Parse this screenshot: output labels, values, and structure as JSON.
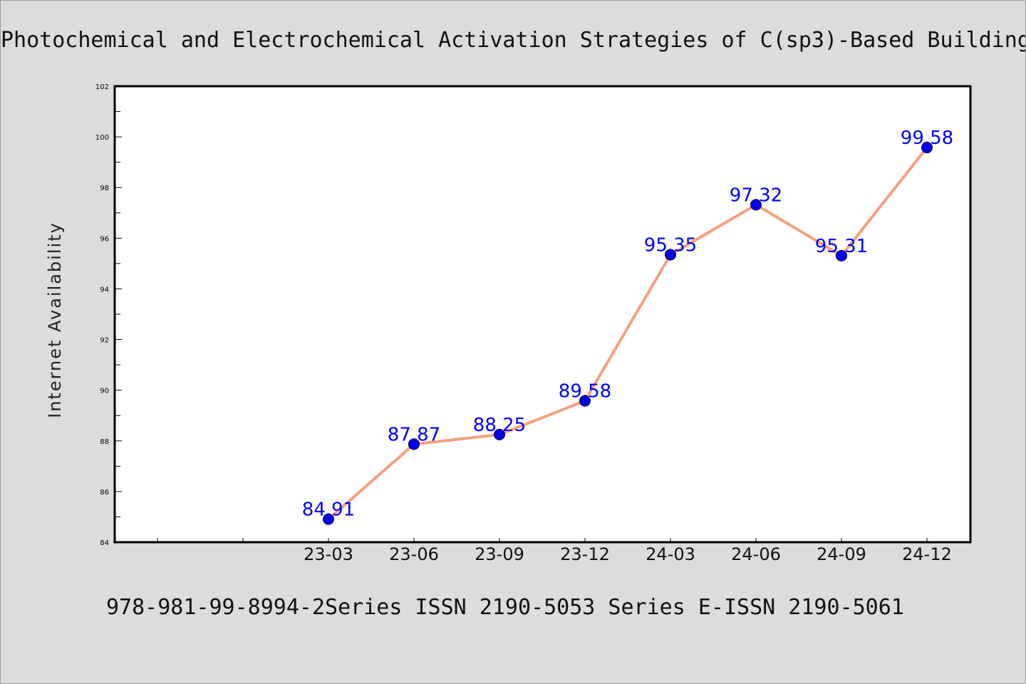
{
  "chart_data": {
    "type": "line",
    "title": "Photochemical and Electrochemical Activation Strategies of C(sp3)-Based Building",
    "xlabel": "",
    "ylabel": "Internet Availability",
    "categories": [
      "23-03",
      "23-06",
      "23-09",
      "23-12",
      "24-03",
      "24-06",
      "24-09",
      "24-12"
    ],
    "values": [
      84.91,
      87.87,
      88.25,
      89.58,
      95.35,
      97.32,
      95.31,
      99.58
    ],
    "data_labels": [
      "84.91",
      "87.87",
      "88.25",
      "89.58",
      "95.35",
      "97.32",
      "95.31",
      "99.58"
    ],
    "ylim": [
      84,
      102
    ],
    "yticks": [
      "84",
      "86",
      "88",
      "90",
      "92",
      "94",
      "96",
      "98",
      "100",
      "102"
    ],
    "grid": false,
    "legend": "none",
    "colors": {
      "line": "#f4a07e",
      "marker": "#0000ee",
      "label": "#0000ff",
      "background": "#dcdcdc",
      "plot_background": "#ffffff"
    }
  },
  "footer": {
    "text": "978-981-99-8994-2Series ISSN 2190-5053 Series E-ISSN 2190-5061"
  }
}
